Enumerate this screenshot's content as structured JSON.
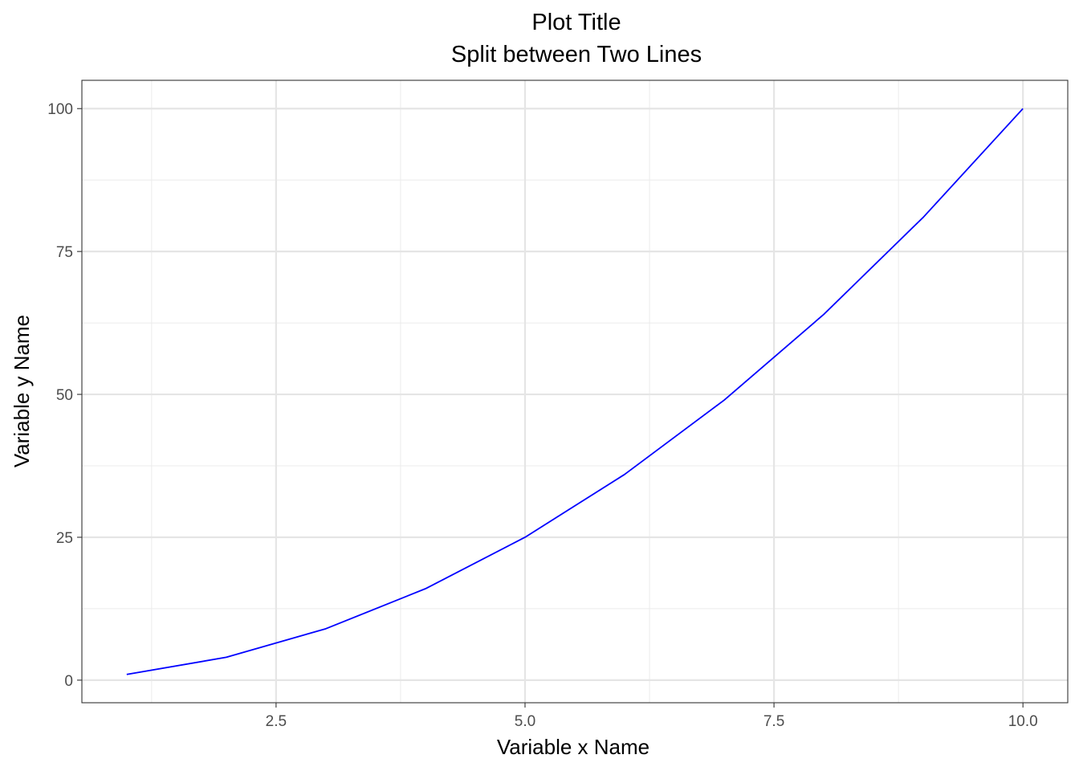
{
  "chart_data": {
    "type": "line",
    "title": "Plot Title",
    "subtitle": "Split between Two Lines",
    "xlabel": "Variable x Name",
    "ylabel": "Variable y Name",
    "x": [
      1,
      2,
      3,
      4,
      5,
      6,
      7,
      8,
      9,
      10
    ],
    "series": [
      {
        "values": [
          1,
          4,
          9,
          16,
          25,
          36,
          49,
          64,
          81,
          100
        ],
        "color": "#0000ff"
      }
    ],
    "xlim": [
      0.55,
      10.45
    ],
    "ylim": [
      -3.95,
      104.95
    ],
    "xticks": [
      2.5,
      5.0,
      7.5,
      10.0
    ],
    "xtick_labels": [
      "2.5",
      "5.0",
      "7.5",
      "10.0"
    ],
    "yticks": [
      0,
      25,
      50,
      75,
      100
    ],
    "ytick_labels": [
      "0",
      "25",
      "50",
      "75",
      "100"
    ],
    "grid": true,
    "theme": "bw"
  }
}
